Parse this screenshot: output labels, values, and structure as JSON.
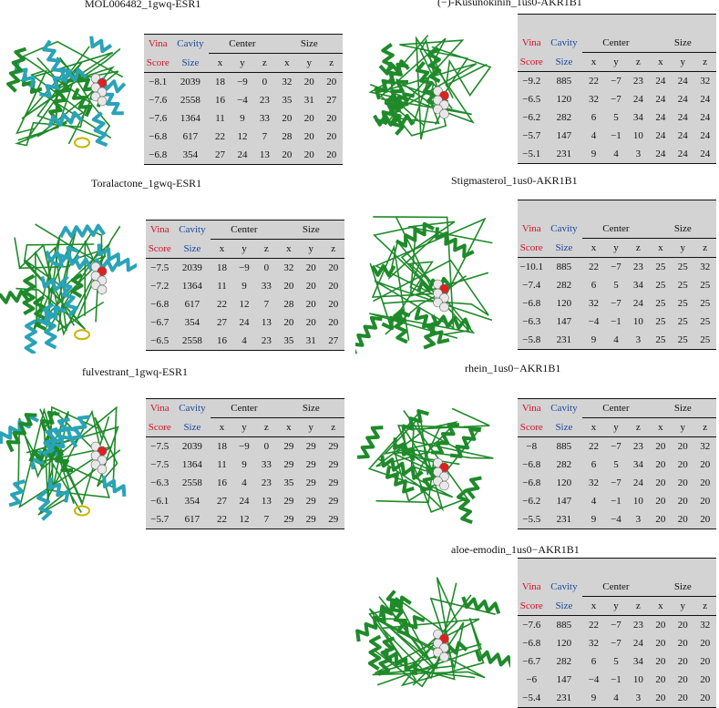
{
  "headers": {
    "vina": "Vina",
    "score": "Score",
    "cavity": "Cavity",
    "size_label": "Size",
    "center": "Center",
    "size": "Size",
    "axes": [
      "x",
      "y",
      "z",
      "x",
      "y",
      "z"
    ]
  },
  "panels": [
    {
      "title": "MOL006482_1gwq-ESR1",
      "protein": "ESR1",
      "rows": [
        [
          "−8.1",
          "2039",
          "18",
          "−9",
          "0",
          "32",
          "20",
          "20"
        ],
        [
          "−7.6",
          "2558",
          "16",
          "−4",
          "23",
          "35",
          "31",
          "27"
        ],
        [
          "−7.6",
          "1364",
          "11",
          "9",
          "33",
          "20",
          "20",
          "20"
        ],
        [
          "−6.8",
          "617",
          "22",
          "12",
          "7",
          "28",
          "20",
          "20"
        ],
        [
          "−6.8",
          "354",
          "27",
          "24",
          "13",
          "20",
          "20",
          "20"
        ]
      ]
    },
    {
      "title": "(−)-Kusunokinin_1us0-AKR1B1",
      "protein": "AKR1B1",
      "rows": [
        [
          "−9.2",
          "885",
          "22",
          "−7",
          "23",
          "24",
          "24",
          "32"
        ],
        [
          "−6.5",
          "120",
          "32",
          "−7",
          "24",
          "24",
          "24",
          "24"
        ],
        [
          "−6.2",
          "282",
          "6",
          "5",
          "34",
          "24",
          "24",
          "24"
        ],
        [
          "−5.7",
          "147",
          "4",
          "−1",
          "10",
          "24",
          "24",
          "24"
        ],
        [
          "−5.1",
          "231",
          "9",
          "4",
          "3",
          "24",
          "24",
          "24"
        ]
      ]
    },
    {
      "title": "Toralactone_1gwq-ESR1",
      "protein": "ESR1",
      "rows": [
        [
          "−7.5",
          "2039",
          "18",
          "−9",
          "0",
          "32",
          "20",
          "20"
        ],
        [
          "−7.2",
          "1364",
          "11",
          "9",
          "33",
          "20",
          "20",
          "20"
        ],
        [
          "−6.8",
          "617",
          "22",
          "12",
          "7",
          "28",
          "20",
          "20"
        ],
        [
          "−6.7",
          "354",
          "27",
          "24",
          "13",
          "20",
          "20",
          "20"
        ],
        [
          "−6.5",
          "2558",
          "16",
          "4",
          "23",
          "35",
          "31",
          "27"
        ]
      ]
    },
    {
      "title": "Stigmasterol_1us0-AKR1B1",
      "protein": "AKR1B1",
      "rows": [
        [
          "−10.1",
          "885",
          "22",
          "−7",
          "23",
          "25",
          "25",
          "32"
        ],
        [
          "−7.4",
          "282",
          "6",
          "5",
          "34",
          "25",
          "25",
          "25"
        ],
        [
          "−6.8",
          "120",
          "32",
          "−7",
          "24",
          "25",
          "25",
          "25"
        ],
        [
          "−6.3",
          "147",
          "−4",
          "−1",
          "10",
          "25",
          "25",
          "25"
        ],
        [
          "−5.8",
          "231",
          "9",
          "4",
          "3",
          "25",
          "25",
          "25"
        ]
      ]
    },
    {
      "title": "fulvestrant_1gwq-ESR1",
      "protein": "ESR1",
      "rows": [
        [
          "−7.5",
          "2039",
          "18",
          "−9",
          "0",
          "29",
          "29",
          "29"
        ],
        [
          "−7.5",
          "1364",
          "11",
          "9",
          "33",
          "29",
          "29",
          "29"
        ],
        [
          "−6.3",
          "2558",
          "16",
          "4",
          "23",
          "35",
          "29",
          "29"
        ],
        [
          "−6.1",
          "354",
          "27",
          "24",
          "13",
          "29",
          "29",
          "29"
        ],
        [
          "−5.7",
          "617",
          "22",
          "12",
          "7",
          "29",
          "29",
          "29"
        ]
      ]
    },
    {
      "title": "rhein_1us0−AKR1B1",
      "protein": "AKR1B1",
      "rows": [
        [
          "−8",
          "885",
          "22",
          "−7",
          "23",
          "20",
          "20",
          "32"
        ],
        [
          "−6.8",
          "282",
          "6",
          "5",
          "34",
          "20",
          "20",
          "20"
        ],
        [
          "−6.8",
          "120",
          "32",
          "−7",
          "24",
          "20",
          "20",
          "20"
        ],
        [
          "−6.2",
          "147",
          "4",
          "−1",
          "10",
          "20",
          "20",
          "20"
        ],
        [
          "−5.5",
          "231",
          "9",
          "−4",
          "3",
          "20",
          "20",
          "20"
        ]
      ]
    },
    {
      "title": "aloe-emodin_1us0−AKR1B1",
      "protein": "AKR1B1",
      "rows": [
        [
          "−7.6",
          "885",
          "22",
          "−7",
          "23",
          "20",
          "20",
          "32"
        ],
        [
          "−6.8",
          "120",
          "32",
          "−7",
          "24",
          "20",
          "20",
          "20"
        ],
        [
          "−6.7",
          "282",
          "6",
          "5",
          "34",
          "20",
          "20",
          "20"
        ],
        [
          "−6",
          "147",
          "−4",
          "−1",
          "10",
          "20",
          "20",
          "20"
        ],
        [
          "−5.4",
          "231",
          "9",
          "4",
          "3",
          "20",
          "20",
          "20"
        ]
      ]
    }
  ],
  "colors": {
    "vina_red": "#d2152b",
    "cavity_blue": "#1c4aa0",
    "esr1_helix": "#2aa3b8",
    "sheet_green": "#1f8a2a",
    "ligand_white": "#e8e8e8",
    "ligand_red": "#e02020",
    "table_bg": "#d3d3d3"
  }
}
